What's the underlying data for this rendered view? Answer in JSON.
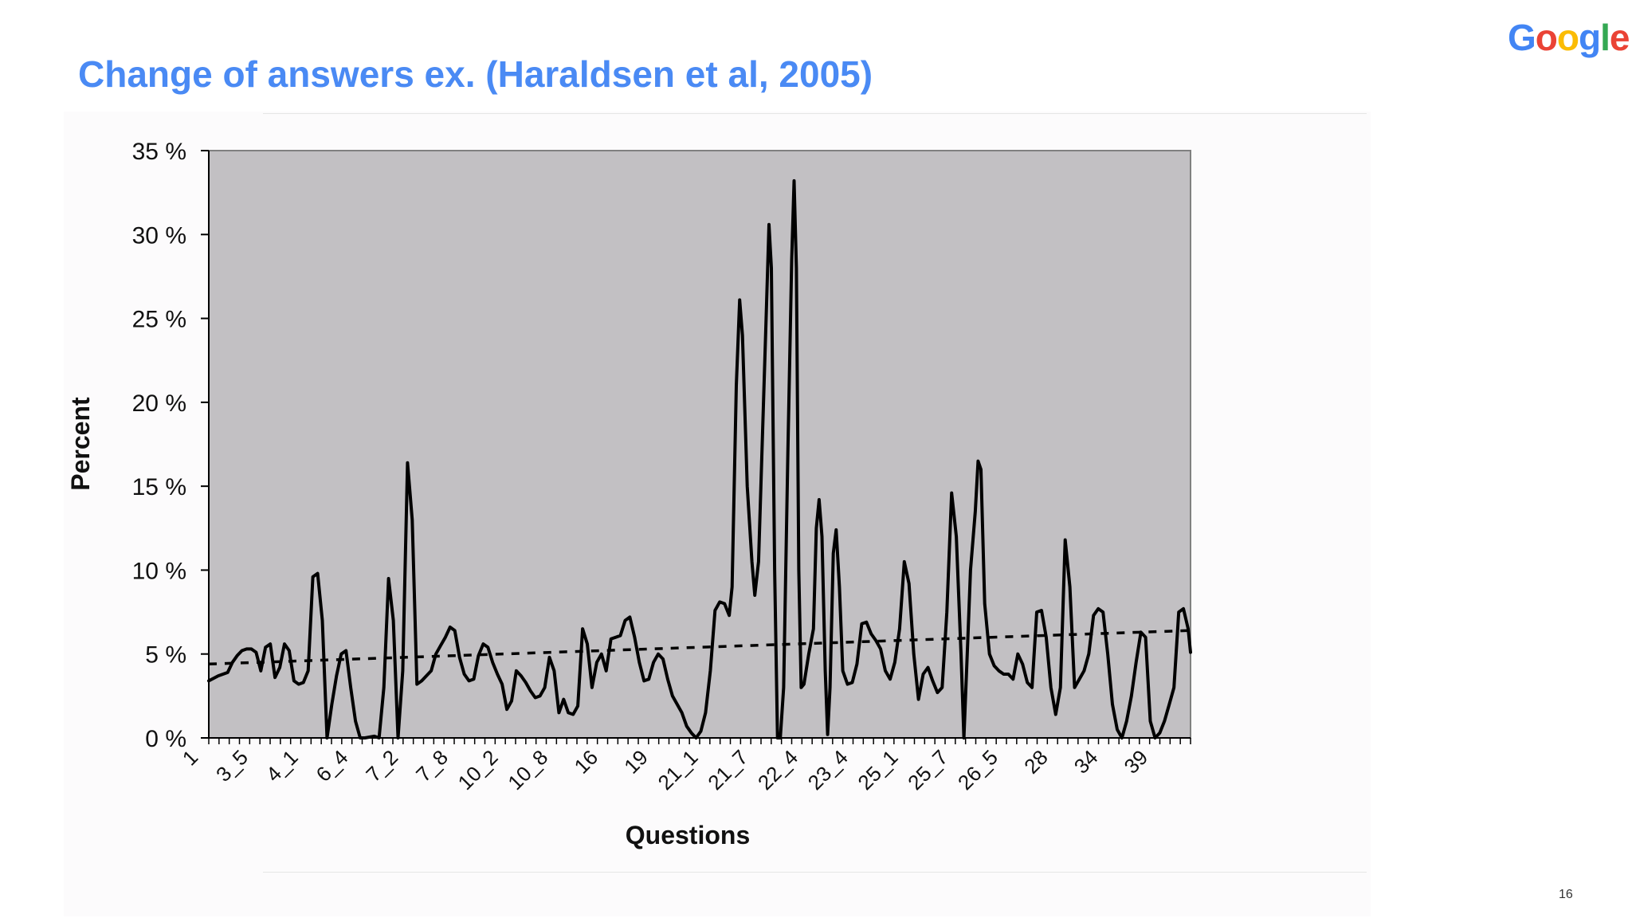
{
  "slide": {
    "title": "Change of answers ex. (Haraldsen et al, 2005)",
    "page_number": "16",
    "logo_letters": [
      {
        "char": "G",
        "color": "#4285F4"
      },
      {
        "char": "o",
        "color": "#EA4335"
      },
      {
        "char": "o",
        "color": "#FBBC05"
      },
      {
        "char": "g",
        "color": "#4285F4"
      },
      {
        "char": "l",
        "color": "#34A853"
      },
      {
        "char": "e",
        "color": "#EA4335"
      }
    ],
    "title_color": "#4a8af4"
  },
  "chart_data": {
    "type": "line",
    "title": "",
    "xlabel": "Questions",
    "ylabel": "Percent",
    "ylim": [
      0,
      35
    ],
    "yticks": [
      0,
      5,
      10,
      15,
      20,
      25,
      30,
      35
    ],
    "ytick_labels": [
      "0 %",
      "5 %",
      "10 %",
      "15 %",
      "20 %",
      "25 %",
      "30 %",
      "35 %"
    ],
    "x_count": 188,
    "x_tick_labels": [
      {
        "index": 0,
        "label": "1"
      },
      {
        "index": 10,
        "label": "3_5"
      },
      {
        "index": 20,
        "label": "4_1"
      },
      {
        "index": 30,
        "label": "6_4"
      },
      {
        "index": 40,
        "label": "7_2"
      },
      {
        "index": 50,
        "label": "7_8"
      },
      {
        "index": 60,
        "label": "10_2"
      },
      {
        "index": 70,
        "label": "10_8"
      },
      {
        "index": 80,
        "label": "16"
      },
      {
        "index": 90,
        "label": "19"
      },
      {
        "index": 100,
        "label": "21_1"
      },
      {
        "index": 110,
        "label": "21_7"
      },
      {
        "index": 120,
        "label": "22_4"
      },
      {
        "index": 130,
        "label": "23_4"
      },
      {
        "index": 140,
        "label": "25_1"
      },
      {
        "index": 150,
        "label": "25_7"
      },
      {
        "index": 160,
        "label": "26_5"
      },
      {
        "index": 170,
        "label": "28"
      },
      {
        "index": 180,
        "label": "34"
      },
      {
        "index": 190,
        "label": "39"
      }
    ],
    "plot_background": "#c2c0c3",
    "series": [
      {
        "style": "solid",
        "points": [
          [
            0,
            3.4
          ],
          [
            2,
            3.7
          ],
          [
            4,
            3.9
          ],
          [
            5,
            4.5
          ],
          [
            6,
            4.9
          ],
          [
            7,
            5.2
          ],
          [
            8,
            5.3
          ],
          [
            9,
            5.3
          ],
          [
            10,
            5.1
          ],
          [
            11,
            4.0
          ],
          [
            12,
            5.4
          ],
          [
            13,
            5.6
          ],
          [
            14,
            3.6
          ],
          [
            15,
            4.2
          ],
          [
            16,
            5.6
          ],
          [
            17,
            5.2
          ],
          [
            18,
            3.4
          ],
          [
            19,
            3.2
          ],
          [
            20,
            3.3
          ],
          [
            21,
            4.0
          ],
          [
            22,
            9.6
          ],
          [
            23,
            9.8
          ],
          [
            24,
            7.0
          ],
          [
            25,
            0.0
          ],
          [
            26,
            2.0
          ],
          [
            27,
            3.7
          ],
          [
            28,
            5.0
          ],
          [
            29,
            5.2
          ],
          [
            30,
            3.0
          ],
          [
            31,
            1.0
          ],
          [
            32,
            0.0
          ],
          [
            33,
            0.0
          ],
          [
            35,
            0.1
          ],
          [
            36,
            0.0
          ],
          [
            37,
            3.0
          ],
          [
            38,
            9.5
          ],
          [
            39,
            7.0
          ],
          [
            40,
            0.0
          ],
          [
            41,
            4.0
          ],
          [
            42,
            16.4
          ],
          [
            43,
            13.0
          ],
          [
            44,
            3.2
          ],
          [
            45,
            3.4
          ],
          [
            46,
            3.7
          ],
          [
            47,
            4.0
          ],
          [
            48,
            5.0
          ],
          [
            49,
            5.5
          ],
          [
            50,
            6.0
          ],
          [
            51,
            6.6
          ],
          [
            52,
            6.4
          ],
          [
            53,
            4.8
          ],
          [
            54,
            3.8
          ],
          [
            55,
            3.4
          ],
          [
            56,
            3.5
          ],
          [
            57,
            4.9
          ],
          [
            58,
            5.6
          ],
          [
            59,
            5.4
          ],
          [
            60,
            4.5
          ],
          [
            61,
            3.8
          ],
          [
            62,
            3.2
          ],
          [
            63,
            1.7
          ],
          [
            64,
            2.2
          ],
          [
            65,
            4.0
          ],
          [
            66,
            3.7
          ],
          [
            67,
            3.3
          ],
          [
            68,
            2.8
          ],
          [
            69,
            2.4
          ],
          [
            70,
            2.5
          ],
          [
            71,
            3.0
          ],
          [
            72,
            4.8
          ],
          [
            73,
            4.0
          ],
          [
            74,
            1.5
          ],
          [
            75,
            2.3
          ],
          [
            76,
            1.5
          ],
          [
            77,
            1.4
          ],
          [
            78,
            1.9
          ],
          [
            79,
            6.5
          ],
          [
            80,
            5.6
          ],
          [
            81,
            3.0
          ],
          [
            82,
            4.5
          ],
          [
            83,
            5.0
          ],
          [
            84,
            4.0
          ],
          [
            85,
            5.9
          ],
          [
            86,
            6.0
          ],
          [
            87,
            6.1
          ],
          [
            88,
            7.0
          ],
          [
            89,
            7.2
          ],
          [
            90,
            6.0
          ],
          [
            91,
            4.5
          ],
          [
            92,
            3.4
          ],
          [
            93,
            3.5
          ],
          [
            94,
            4.5
          ],
          [
            95,
            5.0
          ],
          [
            96,
            4.7
          ],
          [
            97,
            3.5
          ],
          [
            98,
            2.5
          ],
          [
            99,
            2.0
          ],
          [
            100,
            1.5
          ],
          [
            101,
            0.7
          ],
          [
            102,
            0.3
          ],
          [
            103,
            0.0
          ],
          [
            104,
            0.4
          ],
          [
            105,
            1.5
          ],
          [
            106,
            4.0
          ],
          [
            107,
            7.6
          ],
          [
            108,
            8.1
          ],
          [
            109,
            8.0
          ],
          [
            110,
            7.3
          ],
          [
            110.6,
            9.0
          ],
          [
            111.5,
            21.0
          ],
          [
            112.2,
            26.1
          ],
          [
            112.8,
            24.0
          ],
          [
            113.8,
            15.0
          ],
          [
            114.8,
            10.5
          ],
          [
            115.4,
            8.5
          ],
          [
            116.2,
            10.5
          ],
          [
            116.8,
            16.0
          ],
          [
            117.8,
            25.0
          ],
          [
            118.4,
            30.6
          ],
          [
            118.9,
            28.0
          ],
          [
            119.6,
            10.0
          ],
          [
            120.2,
            0.0
          ],
          [
            120.8,
            0.0
          ],
          [
            121.5,
            3.0
          ],
          [
            122.4,
            17.0
          ],
          [
            123.2,
            28.5
          ],
          [
            123.7,
            33.2
          ],
          [
            124.2,
            28.0
          ],
          [
            124.7,
            10.0
          ],
          [
            125.2,
            3.0
          ],
          [
            125.8,
            3.2
          ],
          [
            126.8,
            5.0
          ],
          [
            127.8,
            6.5
          ],
          [
            128.4,
            12.5
          ],
          [
            129.0,
            14.2
          ],
          [
            129.6,
            12.0
          ],
          [
            130.3,
            4.0
          ],
          [
            130.8,
            0.2
          ],
          [
            131.3,
            3.0
          ],
          [
            132.0,
            11.0
          ],
          [
            132.6,
            12.4
          ],
          [
            133.3,
            9.0
          ],
          [
            134.0,
            4.0
          ],
          [
            135.0,
            3.2
          ],
          [
            136,
            3.3
          ],
          [
            137,
            4.4
          ],
          [
            138,
            6.8
          ],
          [
            139,
            6.9
          ],
          [
            140,
            6.2
          ],
          [
            141,
            5.8
          ],
          [
            142,
            5.3
          ],
          [
            143,
            4.0
          ],
          [
            144,
            3.5
          ],
          [
            145,
            4.5
          ],
          [
            146,
            6.5
          ],
          [
            147,
            10.5
          ],
          [
            148,
            9.2
          ],
          [
            149,
            5.0
          ],
          [
            150,
            2.3
          ],
          [
            151,
            3.8
          ],
          [
            152,
            4.2
          ],
          [
            153,
            3.4
          ],
          [
            154,
            2.7
          ],
          [
            155,
            3.0
          ],
          [
            156,
            7.5
          ],
          [
            157,
            14.6
          ],
          [
            158,
            12.0
          ],
          [
            159,
            5.0
          ],
          [
            159.6,
            0.0
          ],
          [
            160.3,
            5.0
          ],
          [
            161.0,
            10.0
          ],
          [
            162.0,
            13.5
          ],
          [
            162.6,
            16.5
          ],
          [
            163.2,
            16.0
          ],
          [
            164.0,
            8.0
          ],
          [
            165,
            5.0
          ],
          [
            166,
            4.3
          ],
          [
            167,
            4.0
          ],
          [
            168,
            3.8
          ],
          [
            169,
            3.8
          ],
          [
            170,
            3.5
          ],
          [
            171,
            5.0
          ],
          [
            172,
            4.4
          ],
          [
            173,
            3.3
          ],
          [
            174,
            3.0
          ],
          [
            175,
            7.5
          ],
          [
            176,
            7.6
          ],
          [
            177,
            6.0
          ],
          [
            178,
            3.0
          ],
          [
            179,
            1.4
          ],
          [
            180,
            3.0
          ],
          [
            181,
            11.8
          ],
          [
            182,
            9.0
          ],
          [
            183,
            3.0
          ],
          [
            184,
            3.5
          ],
          [
            185,
            4.0
          ],
          [
            186,
            5.0
          ],
          [
            187,
            7.3
          ],
          [
            188,
            7.7
          ],
          [
            189,
            7.5
          ],
          [
            190,
            5.0
          ],
          [
            191,
            2.0
          ],
          [
            192,
            0.5
          ],
          [
            193,
            0.0
          ],
          [
            194,
            1.0
          ],
          [
            195,
            2.5
          ],
          [
            196,
            4.5
          ],
          [
            197,
            6.3
          ],
          [
            198,
            6.0
          ],
          [
            199,
            1.0
          ],
          [
            200,
            0.0
          ],
          [
            201,
            0.3
          ],
          [
            202,
            1.0
          ],
          [
            203,
            2.0
          ],
          [
            204,
            3.0
          ],
          [
            205,
            7.5
          ],
          [
            206,
            7.7
          ],
          [
            207,
            6.5
          ],
          [
            207.5,
            5.1
          ]
        ]
      },
      {
        "style": "dashed",
        "points": [
          [
            0,
            4.4
          ],
          [
            207.5,
            6.4
          ]
        ]
      }
    ],
    "grid": false,
    "legend": "none"
  }
}
